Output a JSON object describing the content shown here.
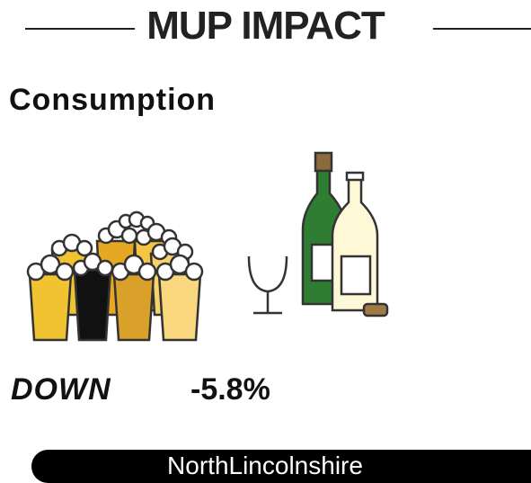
{
  "header": {
    "title": "MUP IMPACT"
  },
  "section": {
    "title": "Consumption",
    "direction": "DOWN",
    "change": "-5.8%"
  },
  "footer": {
    "region": "NorthLincolnshire"
  }
}
